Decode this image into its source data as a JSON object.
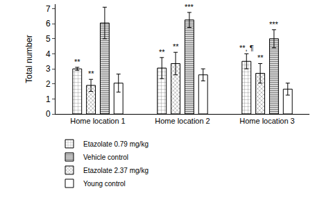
{
  "chart_data": {
    "type": "bar",
    "y_label": "Total number",
    "categories": [
      "Home location 1",
      "Home location 2",
      "Home location 3"
    ],
    "series": [
      {
        "name": "Etazolate 0.79 mg/kg",
        "color": "#000000",
        "marker": "grid",
        "values": [
          3.0,
          3.05,
          3.5
        ],
        "errors": [
          0.1,
          0.7,
          0.5
        ]
      },
      {
        "name": "Etazolate 2.37 mg/kg",
        "color": "#000000",
        "marker": "crosshatch",
        "values": [
          1.9,
          3.35,
          2.7
        ],
        "errors": [
          0.4,
          0.75,
          0.65
        ]
      },
      {
        "name": "Vehicle control",
        "color": "#000000",
        "marker": "hlines",
        "values": [
          6.05,
          6.25,
          5.0
        ],
        "errors": [
          1.05,
          0.5,
          0.6
        ]
      },
      {
        "name": "Young control",
        "color": "#000000",
        "marker": "solid",
        "values": [
          2.05,
          2.6,
          1.65
        ],
        "errors": [
          0.6,
          0.4,
          0.4
        ]
      }
    ],
    "ylim": [
      0,
      7.3
    ],
    "yticks": [
      0,
      1,
      2,
      3,
      4,
      5,
      6,
      7
    ],
    "grid": false,
    "legend": "bottom",
    "annotations": [
      {
        "category": "Home location 1",
        "series": "Etazolate 0.79 mg/kg",
        "text": "**"
      },
      {
        "category": "Home location 1",
        "series": "Etazolate 2.37 mg/kg",
        "text": "**"
      },
      {
        "category": "Home location 2",
        "series": "Etazolate 0.79 mg/kg",
        "text": "**"
      },
      {
        "category": "Home location 2",
        "series": "Etazolate 2.37 mg/kg",
        "text": "**"
      },
      {
        "category": "Home location 2",
        "series": "Vehicle control",
        "text": "***"
      },
      {
        "category": "Home location 3",
        "series": "Etazolate 0.79 mg/kg",
        "text": "**, ¶"
      },
      {
        "category": "Home location 3",
        "series": "Etazolate 2.37 mg/kg",
        "text": "**"
      },
      {
        "category": "Home location 3",
        "series": "Vehicle control",
        "text": "***"
      }
    ]
  }
}
